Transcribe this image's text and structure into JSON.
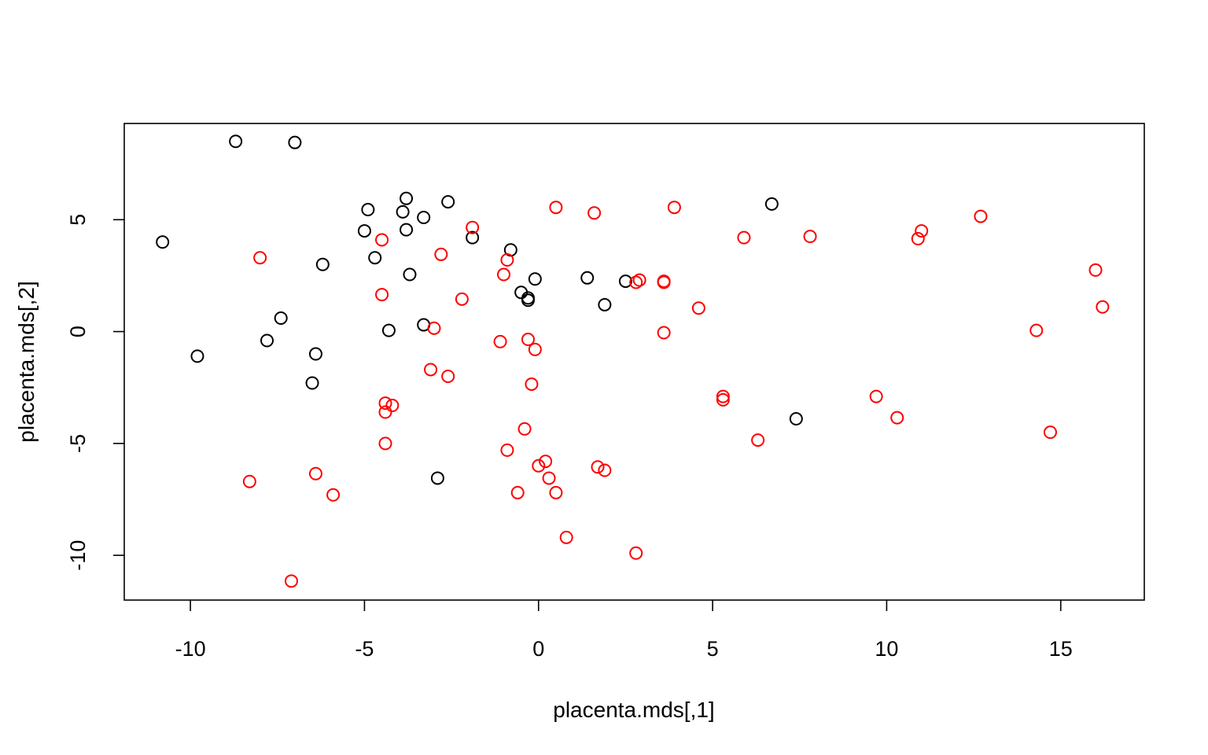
{
  "chart_data": {
    "type": "scatter",
    "title": "",
    "xlabel": "placenta.mds[,1]",
    "ylabel": "placenta.mds[,2]",
    "xlim": [
      -11.9,
      17.4
    ],
    "ylim": [
      -12.0,
      9.3
    ],
    "xticks": [
      -10,
      -5,
      0,
      5,
      10,
      15
    ],
    "yticks": [
      -10,
      -5,
      0,
      5
    ],
    "xtick_labels": [
      "-10",
      "-5",
      "0",
      "5",
      "10",
      "15"
    ],
    "ytick_labels": [
      "-10",
      "-5",
      "0",
      "5"
    ],
    "grid": false,
    "series": [
      {
        "name": "black",
        "color": "#000000",
        "points": [
          [
            -8.7,
            8.5
          ],
          [
            -7.0,
            8.45
          ],
          [
            -10.8,
            4.0
          ],
          [
            -9.8,
            -1.1
          ],
          [
            -7.8,
            -0.4
          ],
          [
            -7.4,
            0.6
          ],
          [
            -6.4,
            -1.0
          ],
          [
            -6.5,
            -2.3
          ],
          [
            -6.2,
            3.0
          ],
          [
            -4.9,
            5.45
          ],
          [
            -5.0,
            4.5
          ],
          [
            -4.7,
            3.3
          ],
          [
            -3.9,
            5.35
          ],
          [
            -3.8,
            5.95
          ],
          [
            -3.8,
            4.55
          ],
          [
            -3.7,
            2.55
          ],
          [
            -3.3,
            5.1
          ],
          [
            -2.6,
            5.8
          ],
          [
            -4.3,
            0.05
          ],
          [
            -3.3,
            0.3
          ],
          [
            -1.9,
            4.2
          ],
          [
            -2.9,
            -6.55
          ],
          [
            -0.8,
            3.65
          ],
          [
            -0.5,
            1.75
          ],
          [
            -0.3,
            1.5
          ],
          [
            -0.3,
            1.4
          ],
          [
            -0.1,
            2.35
          ],
          [
            1.4,
            2.4
          ],
          [
            2.5,
            2.25
          ],
          [
            1.9,
            1.2
          ],
          [
            6.7,
            5.7
          ],
          [
            7.4,
            -3.9
          ]
        ]
      },
      {
        "name": "red",
        "color": "#ff0000",
        "points": [
          [
            -8.0,
            3.3
          ],
          [
            -8.3,
            -6.7
          ],
          [
            -7.1,
            -11.15
          ],
          [
            -6.4,
            -6.35
          ],
          [
            -5.9,
            -7.3
          ],
          [
            -4.5,
            4.1
          ],
          [
            -4.5,
            1.65
          ],
          [
            -4.4,
            -3.2
          ],
          [
            -4.4,
            -3.6
          ],
          [
            -4.2,
            -3.3
          ],
          [
            -4.4,
            -5.0
          ],
          [
            -2.8,
            3.45
          ],
          [
            -2.2,
            1.45
          ],
          [
            -3.0,
            0.15
          ],
          [
            -3.1,
            -1.7
          ],
          [
            -2.6,
            -2.0
          ],
          [
            -1.9,
            4.65
          ],
          [
            -0.9,
            3.2
          ],
          [
            -1.0,
            2.55
          ],
          [
            -1.1,
            -0.45
          ],
          [
            -0.3,
            -0.35
          ],
          [
            -0.1,
            -0.8
          ],
          [
            -0.2,
            -2.35
          ],
          [
            -0.4,
            -4.35
          ],
          [
            -0.9,
            -5.3
          ],
          [
            -0.6,
            -7.2
          ],
          [
            0.0,
            -6.0
          ],
          [
            0.2,
            -5.8
          ],
          [
            0.3,
            -6.55
          ],
          [
            0.5,
            -7.2
          ],
          [
            0.8,
            -9.2
          ],
          [
            0.5,
            5.55
          ],
          [
            1.6,
            5.3
          ],
          [
            1.7,
            -6.05
          ],
          [
            1.9,
            -6.2
          ],
          [
            2.8,
            2.2
          ],
          [
            2.9,
            2.3
          ],
          [
            3.6,
            2.2
          ],
          [
            3.6,
            2.25
          ],
          [
            3.9,
            5.55
          ],
          [
            3.6,
            -0.05
          ],
          [
            4.6,
            1.05
          ],
          [
            5.3,
            -2.9
          ],
          [
            5.3,
            -3.05
          ],
          [
            5.9,
            4.2
          ],
          [
            6.3,
            -4.85
          ],
          [
            2.8,
            -9.9
          ],
          [
            7.8,
            4.25
          ],
          [
            9.7,
            -2.9
          ],
          [
            10.3,
            -3.85
          ],
          [
            10.9,
            4.15
          ],
          [
            11.0,
            4.5
          ],
          [
            12.7,
            5.15
          ],
          [
            14.3,
            0.05
          ],
          [
            14.7,
            -4.5
          ],
          [
            16.0,
            2.75
          ],
          [
            16.2,
            1.1
          ]
        ]
      }
    ]
  }
}
